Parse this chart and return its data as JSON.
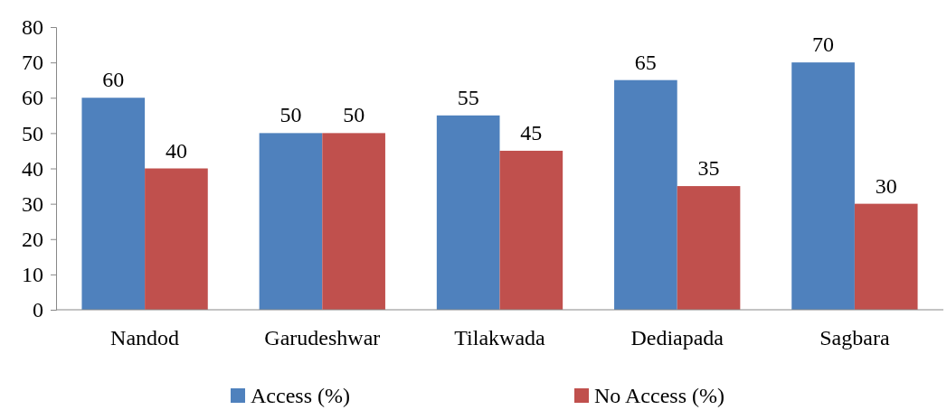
{
  "chart_data": {
    "type": "bar",
    "categories": [
      "Nandod",
      "Garudeshwar",
      "Tilakwada",
      "Dediapada",
      "Sagbara"
    ],
    "series": [
      {
        "name": "Access (%)",
        "color": "#4f81bd",
        "values": [
          60,
          50,
          55,
          65,
          70
        ]
      },
      {
        "name": "No Access (%)",
        "color": "#c0504d",
        "values": [
          40,
          50,
          45,
          35,
          30
        ]
      }
    ],
    "ylim": [
      0,
      80
    ],
    "yticks": [
      0,
      10,
      20,
      30,
      40,
      50,
      60,
      70,
      80
    ],
    "data_labels": true,
    "legend": "bottom",
    "grid": false
  }
}
